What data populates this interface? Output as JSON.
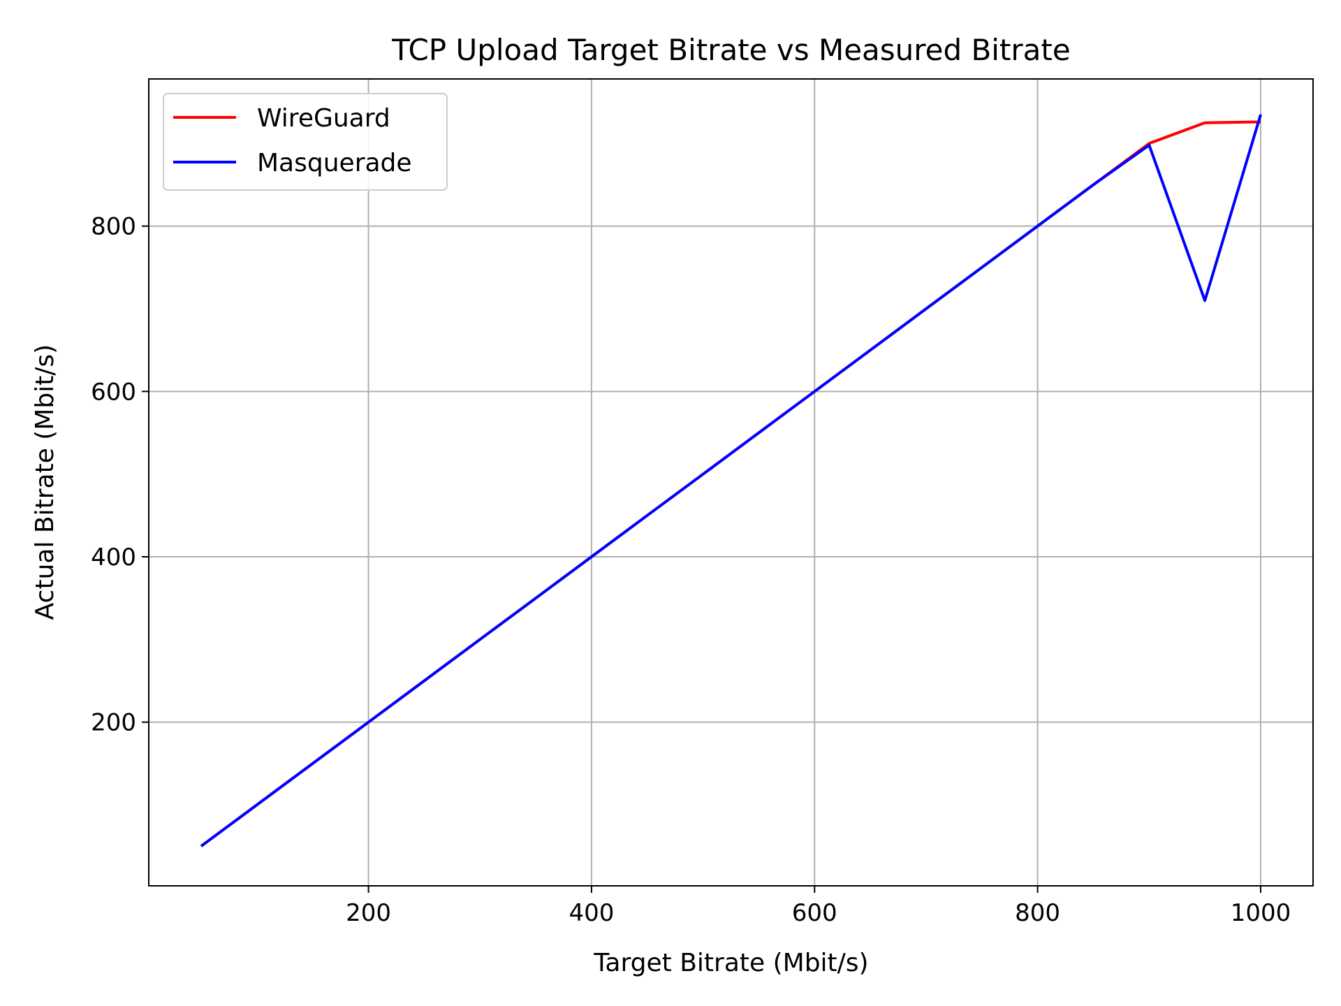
{
  "chart_data": {
    "type": "line",
    "title": "TCP Upload Target Bitrate vs Measured Bitrate",
    "xlabel": "Target Bitrate (Mbit/s)",
    "ylabel": "Actual Bitrate (Mbit/s)",
    "xlim": [
      3,
      1047
    ],
    "ylim": [
      2,
      978
    ],
    "xticks": [
      200,
      400,
      600,
      800,
      1000
    ],
    "yticks": [
      200,
      400,
      600,
      800
    ],
    "grid": true,
    "legend_position": "top-left",
    "series": [
      {
        "name": "WireGuard",
        "color": "#ff0000",
        "x": [
          50,
          100,
          150,
          200,
          250,
          300,
          350,
          400,
          450,
          500,
          550,
          600,
          650,
          700,
          750,
          800,
          850,
          900,
          950,
          1000
        ],
        "y": [
          50,
          100,
          150,
          200,
          250,
          300,
          350,
          400,
          450,
          500,
          550,
          600,
          650,
          700,
          750,
          800,
          850,
          900,
          925,
          926
        ]
      },
      {
        "name": "Masquerade",
        "color": "#0000ff",
        "x": [
          50,
          100,
          150,
          200,
          250,
          300,
          350,
          400,
          450,
          500,
          550,
          600,
          650,
          700,
          750,
          800,
          850,
          900,
          950,
          1000
        ],
        "y": [
          50,
          100,
          150,
          200,
          250,
          300,
          350,
          400,
          450,
          500,
          550,
          600,
          650,
          700,
          750,
          800,
          850,
          898,
          710,
          935
        ]
      }
    ]
  }
}
